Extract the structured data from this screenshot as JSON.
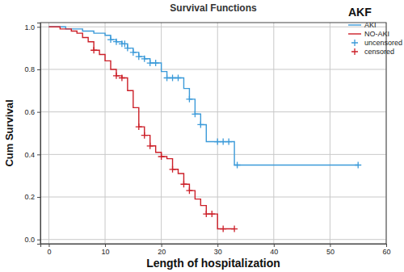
{
  "chart_data": {
    "type": "line",
    "title": "Survival Functions",
    "x_label": "Length of hospitalization",
    "y_label": "Cum Survival",
    "legend_title": "AKF",
    "legend": "upper right",
    "grid": true,
    "xlim": [
      -1.5,
      60
    ],
    "ylim": [
      -0.02,
      1.02
    ],
    "xticks": [
      0,
      10,
      20,
      30,
      40,
      50,
      60
    ],
    "yticks": [
      {
        "value": 0,
        "label": "0.0"
      },
      0.2,
      0.4,
      0.6,
      0.8,
      {
        "value": 1,
        "label": "1.0"
      }
    ],
    "series": [
      {
        "name": "AKI",
        "type": "line",
        "line_style": "step",
        "color": "#3b9ad9",
        "x": [
          0,
          3,
          6,
          8,
          10,
          11,
          12,
          13,
          14,
          15,
          16,
          17,
          18,
          20,
          21,
          24,
          25,
          26,
          27,
          28,
          33,
          55
        ],
        "values": [
          1.0,
          0.99,
          0.98,
          0.97,
          0.96,
          0.94,
          0.93,
          0.92,
          0.9,
          0.88,
          0.86,
          0.85,
          0.83,
          0.79,
          0.76,
          0.71,
          0.66,
          0.59,
          0.54,
          0.46,
          0.35,
          0.35
        ]
      },
      {
        "name": "NO-AKI",
        "type": "line",
        "line_style": "step",
        "color": "#cc1f28",
        "x": [
          0,
          2,
          4,
          5,
          6,
          7,
          8,
          9,
          10,
          11,
          12,
          13,
          14,
          15,
          16,
          17,
          18,
          19,
          20,
          21,
          22,
          23,
          24,
          25,
          26,
          27,
          28,
          30,
          33
        ],
        "values": [
          1.0,
          0.99,
          0.98,
          0.97,
          0.95,
          0.93,
          0.89,
          0.87,
          0.84,
          0.8,
          0.77,
          0.76,
          0.7,
          0.62,
          0.53,
          0.49,
          0.44,
          0.41,
          0.39,
          0.38,
          0.33,
          0.31,
          0.26,
          0.23,
          0.19,
          0.16,
          0.12,
          0.05,
          0.05
        ]
      },
      {
        "name": "uncensored",
        "type": "scatter",
        "marker": "plus",
        "color": "#3b9ad9",
        "x": [
          11,
          12,
          13,
          13.5,
          14,
          15,
          16,
          17,
          18,
          19,
          21,
          22,
          23,
          25,
          26,
          27,
          30,
          31,
          32,
          33.5,
          55
        ],
        "values": [
          0.94,
          0.93,
          0.92,
          0.92,
          0.9,
          0.88,
          0.86,
          0.85,
          0.83,
          0.83,
          0.76,
          0.76,
          0.76,
          0.66,
          0.59,
          0.54,
          0.46,
          0.46,
          0.46,
          0.35,
          0.35
        ]
      },
      {
        "name": "censored",
        "type": "scatter",
        "marker": "plus",
        "color": "#cc1f28",
        "x": [
          8,
          12,
          13,
          16,
          17,
          18,
          20,
          22,
          24,
          25,
          28,
          29,
          31,
          33
        ],
        "values": [
          0.89,
          0.77,
          0.76,
          0.53,
          0.49,
          0.44,
          0.39,
          0.33,
          0.26,
          0.23,
          0.12,
          0.12,
          0.05,
          0.05
        ]
      }
    ]
  }
}
